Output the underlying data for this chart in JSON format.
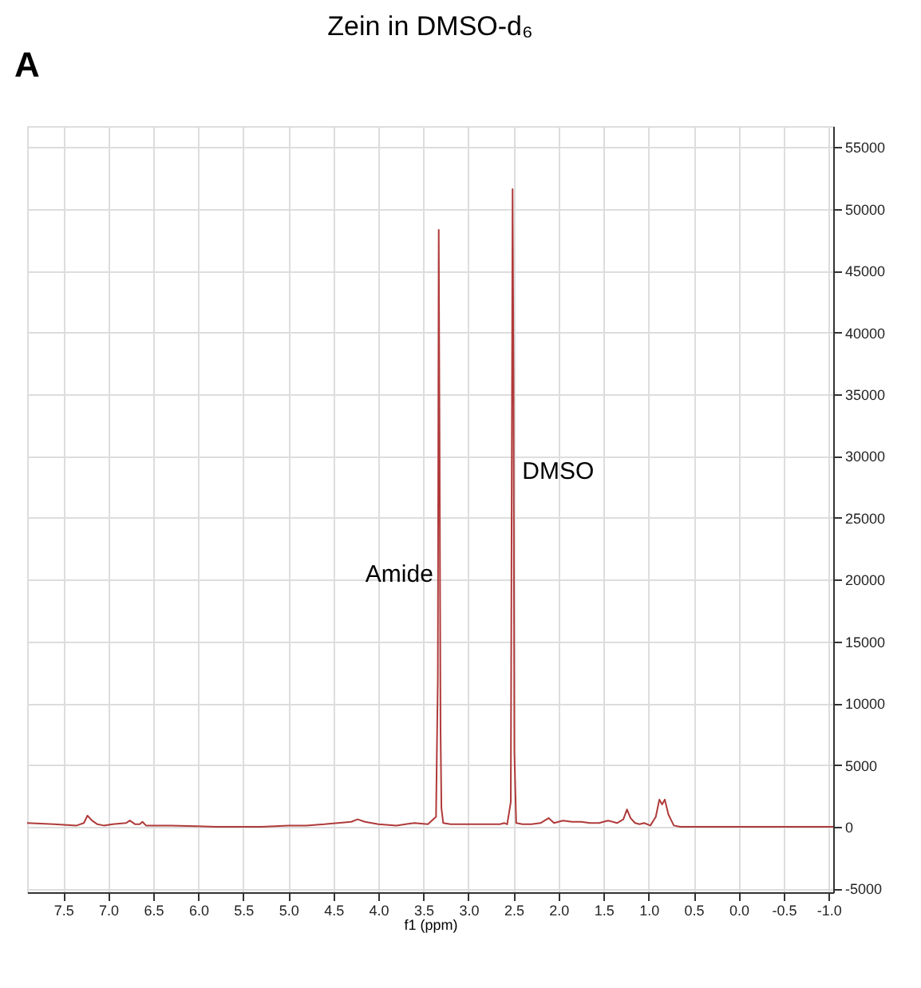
{
  "chart_data": {
    "type": "line",
    "title": "Zein in DMSO-d₆",
    "xlabel": "f1 (ppm)",
    "annotations": [
      "A",
      {
        "text": "Amide",
        "x": 3.32,
        "y": 20500
      },
      {
        "text": "DMSO",
        "x": 2.51,
        "y": 28800
      }
    ],
    "series": [
      {
        "color": "#b03a3a",
        "x": [
          7.9,
          7.6,
          7.35,
          7.27,
          7.23,
          7.18,
          7.12,
          7.05,
          6.95,
          6.8,
          6.76,
          6.7,
          6.65,
          6.62,
          6.58,
          6.3,
          5.8,
          5.3,
          5.0,
          4.8,
          4.6,
          4.45,
          4.3,
          4.23,
          4.15,
          4.0,
          3.8,
          3.6,
          3.45,
          3.36,
          3.34,
          3.33,
          3.32,
          3.31,
          3.3,
          3.28,
          3.2,
          2.9,
          2.65,
          2.6,
          2.57,
          2.53,
          2.51,
          2.5,
          2.49,
          2.47,
          2.4,
          2.3,
          2.2,
          2.11,
          2.05,
          2.0,
          1.95,
          1.85,
          1.75,
          1.65,
          1.55,
          1.45,
          1.35,
          1.28,
          1.24,
          1.2,
          1.15,
          1.1,
          1.05,
          0.98,
          0.92,
          0.88,
          0.85,
          0.82,
          0.78,
          0.72,
          0.65,
          0.4,
          0.0,
          -0.5,
          -1.05
        ],
        "values": [
          300,
          200,
          100,
          300,
          900,
          500,
          200,
          100,
          200,
          300,
          500,
          200,
          200,
          400,
          100,
          100,
          0,
          0,
          100,
          100,
          200,
          300,
          400,
          600,
          400,
          200,
          100,
          300,
          200,
          800,
          12000,
          48300,
          30000,
          8000,
          1500,
          300,
          200,
          200,
          200,
          300,
          200,
          2000,
          51600,
          37000,
          6000,
          300,
          200,
          200,
          300,
          700,
          300,
          400,
          500,
          400,
          400,
          300,
          300,
          500,
          300,
          600,
          1400,
          700,
          300,
          200,
          300,
          100,
          800,
          2200,
          1800,
          2200,
          1000,
          100,
          0,
          0,
          0,
          0,
          0
        ]
      }
    ],
    "xlim": [
      7.9,
      -1.05
    ],
    "ylim": [
      -5300,
      56700
    ],
    "xticks": [
      {
        "value": 7.5,
        "label": "7.5"
      },
      {
        "value": 7,
        "label": "7.0"
      },
      {
        "value": 6.5,
        "label": "6.5"
      },
      {
        "value": 6,
        "label": "6.0"
      },
      {
        "value": 5.5,
        "label": "5.5"
      },
      {
        "value": 5,
        "label": "5.0"
      },
      {
        "value": 4.5,
        "label": "4.5"
      },
      {
        "value": 4,
        "label": "4.0"
      },
      {
        "value": 3.5,
        "label": "3.5"
      },
      {
        "value": 3,
        "label": "3.0"
      },
      {
        "value": 2.5,
        "label": "2.5"
      },
      {
        "value": 2,
        "label": "2.0"
      },
      {
        "value": 1.5,
        "label": "1.5"
      },
      {
        "value": 1,
        "label": "1.0"
      },
      {
        "value": 0.5,
        "label": "0.5"
      },
      {
        "value": 0,
        "label": "0.0"
      },
      {
        "value": -0.5,
        "label": "-0.5"
      },
      {
        "value": -1,
        "label": "-1.0"
      }
    ],
    "yticks": [
      -5000,
      0,
      5000,
      10000,
      15000,
      20000,
      25000,
      30000,
      35000,
      40000,
      45000,
      50000,
      55000
    ],
    "grid": true,
    "marker": "none",
    "line_style": "solid"
  }
}
